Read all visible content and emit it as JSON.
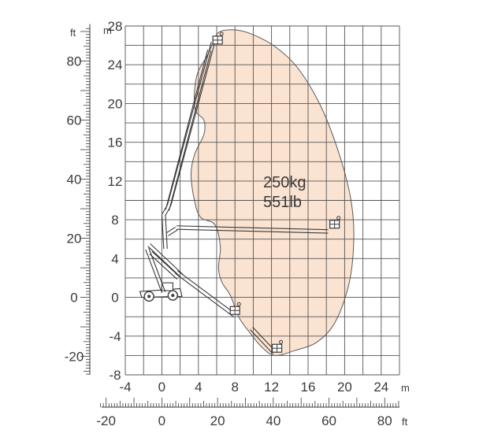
{
  "chart_data": {
    "type": "working-range-diagram",
    "units": {
      "metric": "m",
      "imperial": "ft"
    },
    "capacity": {
      "kg_label": "250kg",
      "lb_label": "551lb"
    },
    "x_m": {
      "ticks": [
        -4,
        0,
        4,
        8,
        12,
        16,
        20,
        24
      ],
      "range": [
        -4,
        26
      ],
      "grid_step": 2
    },
    "y_m": {
      "ticks": [
        -8,
        -4,
        0,
        4,
        8,
        12,
        16,
        20,
        24,
        28
      ],
      "range": [
        -8,
        28
      ],
      "grid_step": 2
    },
    "x_ft": {
      "ticks": [
        -20,
        0,
        20,
        40,
        60,
        80
      ]
    },
    "y_ft": {
      "ticks": [
        -20,
        0,
        20,
        40,
        60,
        80
      ]
    },
    "envelope_m": [
      [
        6.3,
        27.4
      ],
      [
        8,
        27.6
      ],
      [
        10,
        27.1
      ],
      [
        12.5,
        25.8
      ],
      [
        15,
        23.5
      ],
      [
        17.5,
        19.5
      ],
      [
        19.5,
        14.5
      ],
      [
        20.7,
        10
      ],
      [
        21,
        6
      ],
      [
        20.5,
        1.5
      ],
      [
        19,
        -2.5
      ],
      [
        17,
        -4.6
      ],
      [
        14.5,
        -5.5
      ],
      [
        12.4,
        -6
      ],
      [
        11,
        -5.2
      ],
      [
        9.5,
        -3.5
      ],
      [
        8.4,
        -2
      ],
      [
        7.5,
        0.2
      ],
      [
        6.6,
        1.5
      ],
      [
        6.2,
        3
      ],
      [
        6.4,
        5.2
      ],
      [
        5.8,
        7.5
      ],
      [
        4.2,
        8.3
      ],
      [
        3.5,
        10.3
      ],
      [
        3.2,
        12.8
      ],
      [
        3.6,
        14.8
      ],
      [
        4.6,
        16.8
      ],
      [
        4.6,
        18.3
      ],
      [
        3.6,
        19.5
      ],
      [
        3.8,
        22.8
      ],
      [
        5,
        25
      ],
      [
        5.7,
        26.5
      ]
    ],
    "colors": {
      "envelope_fill": "#fbe3d1",
      "envelope_stroke": "#5a5a5a",
      "grid": "#555555",
      "machine": "#3a3a3a"
    }
  }
}
